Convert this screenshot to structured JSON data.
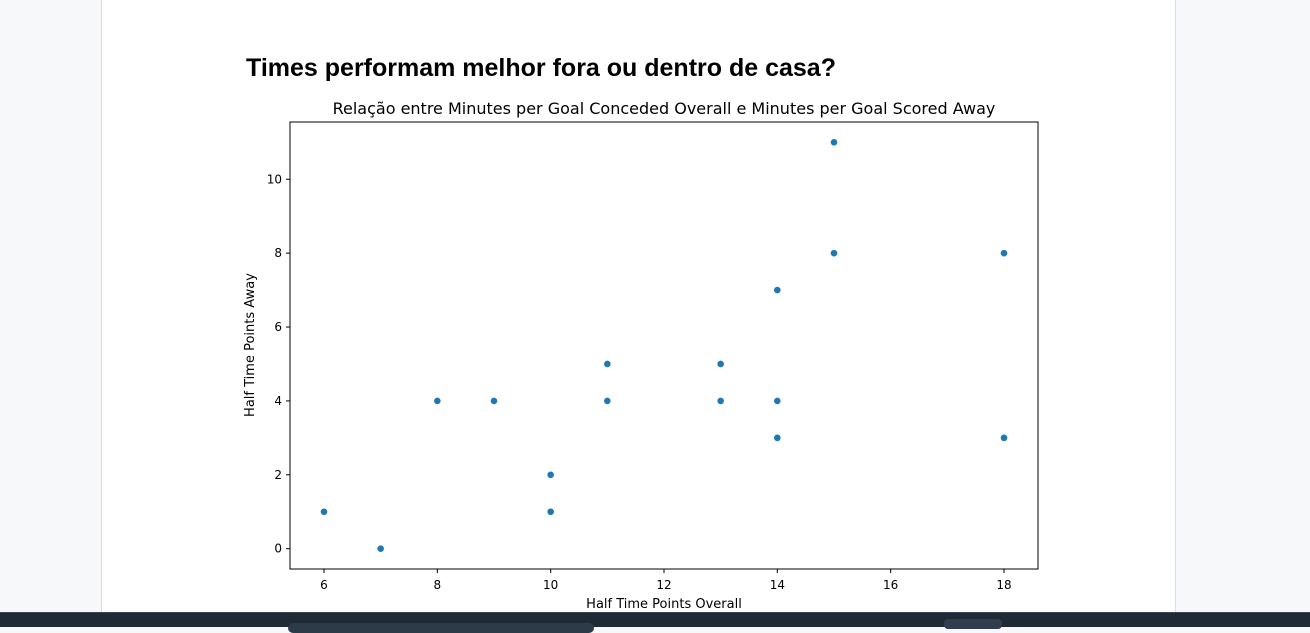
{
  "page": {
    "heading": "Times performam melhor fora ou dentro de casa?"
  },
  "chart_data": {
    "type": "scatter",
    "title": "Relação entre Minutes per Goal Conceded Overall e Minutes per Goal Scored Away",
    "xlabel": "Half Time Points Overall",
    "ylabel": "Half Time Points Away",
    "xlim": [
      5.4,
      18.6
    ],
    "ylim": [
      -0.55,
      11.55
    ],
    "xticks": [
      6,
      8,
      10,
      12,
      14,
      16,
      18
    ],
    "yticks": [
      0,
      2,
      4,
      6,
      8,
      10
    ],
    "grid": false,
    "color": "#1f77b4",
    "points": [
      {
        "x": 6,
        "y": 1
      },
      {
        "x": 7,
        "y": 0
      },
      {
        "x": 8,
        "y": 4
      },
      {
        "x": 9,
        "y": 4
      },
      {
        "x": 10,
        "y": 2
      },
      {
        "x": 10,
        "y": 1
      },
      {
        "x": 11,
        "y": 5
      },
      {
        "x": 11,
        "y": 4
      },
      {
        "x": 13,
        "y": 5
      },
      {
        "x": 13,
        "y": 4
      },
      {
        "x": 14,
        "y": 7
      },
      {
        "x": 14,
        "y": 4
      },
      {
        "x": 14,
        "y": 3
      },
      {
        "x": 15,
        "y": 11
      },
      {
        "x": 15,
        "y": 8
      },
      {
        "x": 18,
        "y": 8
      },
      {
        "x": 18,
        "y": 3
      }
    ]
  },
  "taskbar": {
    "color": "#1f2a36"
  }
}
